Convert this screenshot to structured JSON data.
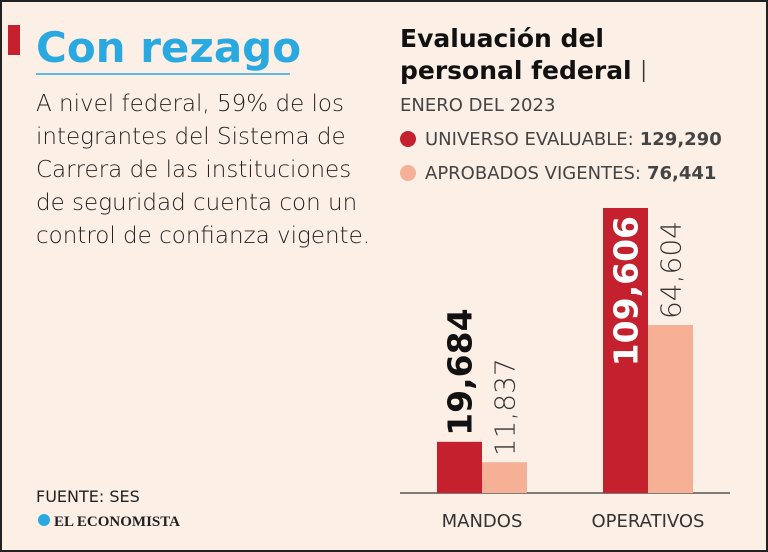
{
  "headline": "Con rezago",
  "body_lines": [
    "A nivel federal, 59% de los",
    "integrantes del Sistema de",
    "Carrera de las instituciones",
    "de seguridad cuenta con un",
    "control de confianza vigente."
  ],
  "source": "FUENTE: SES",
  "brand": "EL ECONOMISTA",
  "chart_data": {
    "type": "bar",
    "title_lines": [
      "Evaluación del",
      "personal federal"
    ],
    "subtitle": "ENERO DEL 2023",
    "categories": [
      "MANDOS",
      "OPERATIVOS"
    ],
    "series": [
      {
        "name": "UNIVERSO EVALUABLE:",
        "color": "#c4202d",
        "total": 129290,
        "total_label": "129,290",
        "values": [
          19684,
          109606
        ],
        "value_labels": [
          "19,684",
          "109,606"
        ]
      },
      {
        "name": "APROBADOS VIGENTES:",
        "color": "#f5b096",
        "total": 76441,
        "total_label": "76,441",
        "values": [
          11837,
          64604
        ],
        "value_labels": [
          "11,837",
          "64,604"
        ]
      }
    ]
  }
}
